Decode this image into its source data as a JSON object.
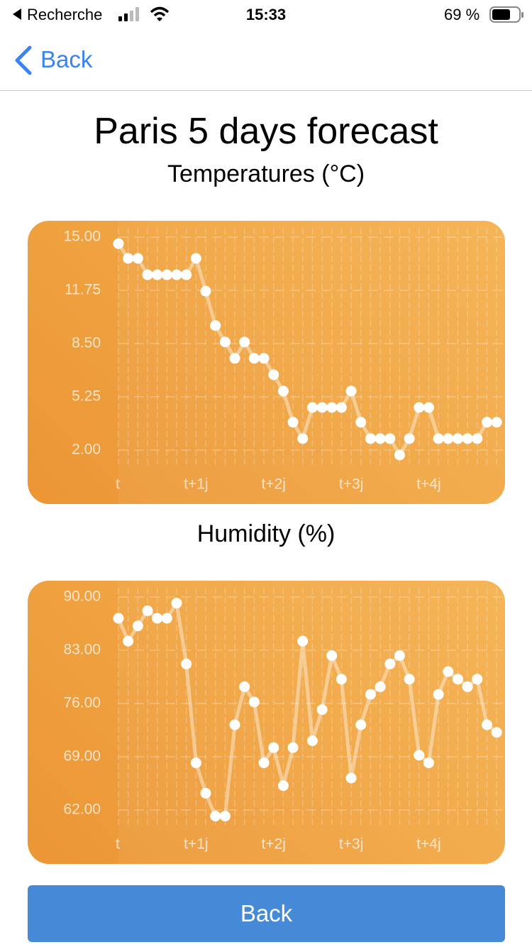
{
  "status_bar": {
    "back_app": "Recherche",
    "time": "15:33",
    "battery": "69 %"
  },
  "nav": {
    "back": "Back"
  },
  "title": "Paris 5 days forecast",
  "chart_data": [
    {
      "type": "line",
      "title": "Temperatures (°C)",
      "categories": [
        "t",
        null,
        null,
        null,
        null,
        null,
        null,
        null,
        "t+1j",
        null,
        null,
        null,
        null,
        null,
        null,
        null,
        "t+2j",
        null,
        null,
        null,
        null,
        null,
        null,
        null,
        "t+3j",
        null,
        null,
        null,
        null,
        null,
        null,
        null,
        "t+4j",
        null,
        null,
        null,
        null,
        null,
        null,
        null
      ],
      "series": [
        {
          "color": "#ffffff",
          "values": [
            14.6,
            13.7,
            13.7,
            12.7,
            12.7,
            12.7,
            12.7,
            12.7,
            13.7,
            11.7,
            9.6,
            8.6,
            7.6,
            8.6,
            7.6,
            7.6,
            6.6,
            5.6,
            3.7,
            2.7,
            4.6,
            4.6,
            4.6,
            4.6,
            5.6,
            3.7,
            2.7,
            2.7,
            2.7,
            1.7,
            2.7,
            4.6,
            4.6,
            2.7,
            2.7,
            2.7,
            2.7,
            2.7,
            3.7,
            3.7
          ]
        }
      ],
      "ylim": [
        2,
        15
      ],
      "yticks": [
        {
          "value": 15,
          "label": "15.00"
        },
        {
          "value": 11.75,
          "label": "11.75"
        },
        {
          "value": 8.5,
          "label": "8.50"
        },
        {
          "value": 5.25,
          "label": "5.25"
        },
        {
          "value": 2,
          "label": "2.00"
        }
      ],
      "grid": true
    },
    {
      "type": "line",
      "title": "Humidity (%)",
      "categories": [
        "t",
        null,
        null,
        null,
        null,
        null,
        null,
        null,
        "t+1j",
        null,
        null,
        null,
        null,
        null,
        null,
        null,
        "t+2j",
        null,
        null,
        null,
        null,
        null,
        null,
        null,
        "t+3j",
        null,
        null,
        null,
        null,
        null,
        null,
        null,
        "t+4j",
        null,
        null,
        null,
        null,
        null,
        null,
        null
      ],
      "series": [
        {
          "color": "#ffffff",
          "values": [
            87.2,
            84.2,
            86.2,
            88.2,
            87.2,
            87.2,
            89.2,
            81.2,
            68.2,
            64.2,
            61.2,
            61.2,
            73.2,
            78.2,
            76.2,
            68.2,
            70.2,
            65.2,
            70.2,
            84.2,
            71.1,
            75.2,
            82.3,
            79.2,
            66.2,
            73.2,
            77.2,
            78.2,
            81.2,
            82.3,
            79.2,
            69.2,
            68.2,
            77.2,
            80.2,
            79.2,
            78.2,
            79.2,
            73.2,
            72.2
          ]
        }
      ],
      "ylim": [
        62,
        90
      ],
      "yticks": [
        {
          "value": 90,
          "label": "90.00"
        },
        {
          "value": 83,
          "label": "83.00"
        },
        {
          "value": 76,
          "label": "76.00"
        },
        {
          "value": 69,
          "label": "69.00"
        },
        {
          "value": 62,
          "label": "62.00"
        }
      ],
      "grid": true
    }
  ],
  "button": {
    "label": "Back"
  }
}
